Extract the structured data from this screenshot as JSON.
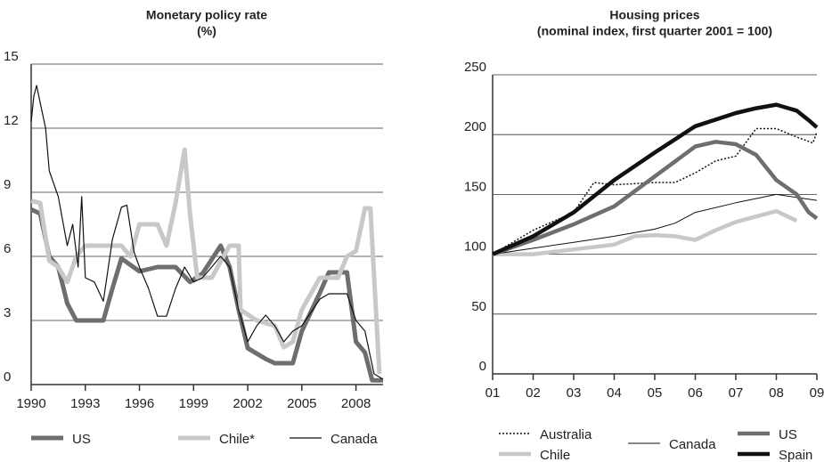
{
  "chart_data": [
    {
      "type": "line",
      "title": "Monetary policy rate",
      "subtitle": "(%)",
      "xlim": [
        1990,
        2009.5
      ],
      "ylim": [
        0,
        15
      ],
      "xticks": [
        1990,
        1993,
        1996,
        1999,
        2002,
        2005,
        2008
      ],
      "yticks": [
        0,
        3,
        6,
        9,
        12,
        15
      ],
      "grid": true,
      "legend": "bottom",
      "series": [
        {
          "name": "US",
          "color": "#6e6e6e",
          "width": 5,
          "x": [
            1990,
            1990.5,
            1991,
            1991.5,
            1992,
            1992.5,
            1993,
            1994,
            1994.5,
            1995,
            1996,
            1997,
            1998,
            1998.8,
            1999.5,
            2000.5,
            2001,
            2001.5,
            2002,
            2003,
            2003.5,
            2004.5,
            2005,
            2006,
            2006.5,
            2007.5,
            2008,
            2008.5,
            2008.9,
            2009.5
          ],
          "values": [
            8.2,
            8.0,
            6.0,
            5.5,
            3.8,
            3.0,
            3.0,
            3.0,
            4.5,
            5.9,
            5.3,
            5.5,
            5.5,
            4.8,
            5.2,
            6.5,
            5.5,
            3.5,
            1.7,
            1.2,
            1.0,
            1.0,
            2.5,
            4.3,
            5.25,
            5.25,
            2.0,
            1.5,
            0.2,
            0.2
          ]
        },
        {
          "name": "Chile*",
          "color": "#c8c8c8",
          "width": 5,
          "x": [
            1990,
            1990.5,
            1991,
            1991.5,
            1992,
            1992.5,
            1993,
            1995,
            1995.5,
            1996,
            1997,
            1997.5,
            1998,
            1998.5,
            1998.8,
            1999.2,
            2000,
            2001,
            2001.5,
            2001.6,
            2002.5,
            2003.5,
            2004,
            2004.5,
            2005,
            2006,
            2007,
            2007.5,
            2008,
            2008.5,
            2008.8,
            2009.3
          ],
          "values": [
            8.6,
            8.5,
            5.8,
            5.5,
            4.8,
            6.0,
            6.5,
            6.5,
            6.0,
            7.5,
            7.5,
            6.5,
            8.5,
            11.0,
            8.0,
            5.0,
            5.0,
            6.5,
            6.5,
            3.5,
            3.0,
            2.75,
            1.75,
            2.0,
            3.5,
            5.0,
            5.0,
            6.0,
            6.25,
            8.25,
            8.25,
            0.5
          ]
        },
        {
          "name": "Canada",
          "color": "#111111",
          "width": 1.2,
          "x": [
            1990,
            1990.15,
            1990.3,
            1990.5,
            1990.8,
            1991,
            1991.5,
            1992,
            1992.3,
            1992.6,
            1992.8,
            1993,
            1993.5,
            1994,
            1994.5,
            1995,
            1995.3,
            1995.7,
            1996,
            1996.5,
            1997,
            1997.5,
            1998,
            1998.5,
            1999,
            1999.5,
            2000,
            2000.5,
            2001,
            2001.5,
            2002,
            2002.5,
            2003,
            2003.5,
            2004,
            2004.5,
            2005,
            2006,
            2006.5,
            2007.5,
            2008,
            2008.5,
            2009,
            2009.5
          ],
          "values": [
            12.3,
            13.5,
            14.0,
            13.2,
            12.0,
            10.0,
            8.8,
            6.5,
            7.5,
            5.5,
            8.8,
            5.0,
            4.8,
            3.9,
            6.8,
            8.3,
            8.4,
            6.2,
            5.5,
            4.5,
            3.2,
            3.2,
            4.5,
            5.5,
            4.8,
            5.0,
            5.5,
            6.0,
            5.5,
            3.5,
            2.0,
            2.75,
            3.25,
            2.75,
            2.0,
            2.5,
            2.75,
            4.0,
            4.25,
            4.25,
            3.0,
            2.5,
            0.5,
            0.25
          ]
        }
      ]
    },
    {
      "type": "line",
      "title": "Housing prices",
      "subtitle": "(nominal index, first quarter 2001 = 100)",
      "xlim": [
        2001,
        2009
      ],
      "ylim": [
        0,
        250
      ],
      "xticks": [
        {
          "value": 2001,
          "label": "01"
        },
        {
          "value": 2002,
          "label": "02"
        },
        {
          "value": 2003,
          "label": "03"
        },
        {
          "value": 2004,
          "label": "04"
        },
        {
          "value": 2005,
          "label": "05"
        },
        {
          "value": 2006,
          "label": "06"
        },
        {
          "value": 2007,
          "label": "07"
        },
        {
          "value": 2008,
          "label": "08"
        },
        {
          "value": 2009,
          "label": "09"
        }
      ],
      "yticks": [
        0,
        50,
        100,
        150,
        200,
        250
      ],
      "grid": true,
      "legend": "bottom",
      "series": [
        {
          "name": "Australia",
          "color": "#111111",
          "width": 1.5,
          "style": "dotted",
          "x": [
            2001,
            2002,
            2003,
            2003.5,
            2004,
            2005,
            2005.5,
            2006,
            2006.5,
            2007,
            2007.5,
            2008,
            2008.5,
            2008.9,
            2009
          ],
          "values": [
            100,
            120,
            135,
            160,
            158,
            160,
            160,
            168,
            178,
            182,
            205,
            205,
            198,
            193,
            202
          ]
        },
        {
          "name": "Chile",
          "color": "#c8c8c8",
          "width": 4.5,
          "x": [
            2001,
            2002,
            2003,
            2004,
            2004.5,
            2005,
            2005.5,
            2006,
            2006.5,
            2007,
            2008,
            2008.5
          ],
          "values": [
            100,
            100,
            104,
            108,
            115,
            116,
            115,
            112,
            120,
            127,
            136,
            128
          ]
        },
        {
          "name": "Canada",
          "color": "#111111",
          "width": 1,
          "x": [
            2001,
            2002,
            2003,
            2004,
            2005,
            2005.5,
            2006,
            2007,
            2008,
            2009
          ],
          "values": [
            100,
            105,
            110,
            115,
            121,
            126,
            135,
            143,
            150,
            145
          ]
        },
        {
          "name": "US",
          "color": "#6e6e6e",
          "width": 4.5,
          "x": [
            2001,
            2002,
            2003,
            2004,
            2005,
            2006,
            2006.5,
            2007,
            2007.5,
            2008,
            2008.5,
            2008.8,
            2009
          ],
          "values": [
            100,
            112,
            125,
            140,
            165,
            190,
            194,
            192,
            183,
            162,
            150,
            135,
            130
          ]
        },
        {
          "name": "Spain",
          "color": "#111111",
          "width": 4.5,
          "x": [
            2001,
            2002,
            2003,
            2004,
            2005,
            2006,
            2007,
            2007.5,
            2008,
            2008.5,
            2008.8,
            2009
          ],
          "values": [
            100,
            115,
            135,
            162,
            185,
            207,
            218,
            222,
            225,
            220,
            212,
            206
          ]
        }
      ]
    }
  ]
}
